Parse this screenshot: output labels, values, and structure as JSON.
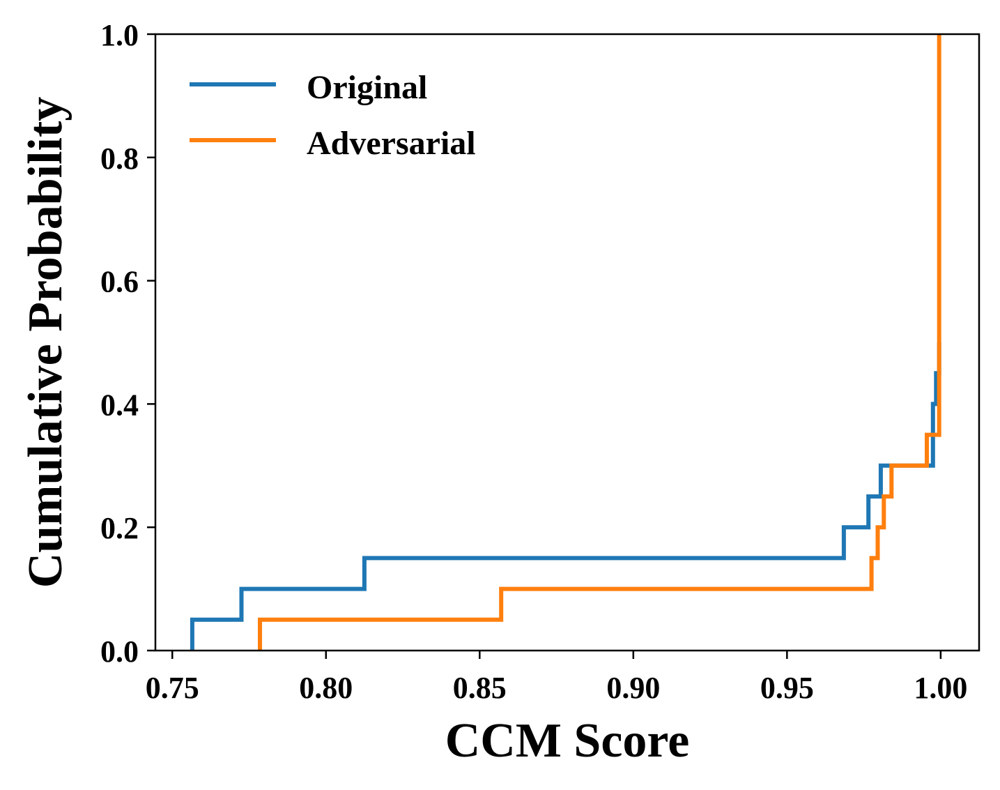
{
  "chart_data": {
    "type": "line",
    "step": "post",
    "xlabel": "CCM Score",
    "ylabel": "Cumulative Probability",
    "xlim": [
      0.7445,
      1.0125
    ],
    "ylim": [
      0.0,
      1.0
    ],
    "xticks": [
      0.75,
      0.8,
      0.85,
      0.9,
      0.95,
      1.0
    ],
    "xtick_labels": [
      "0.75",
      "0.80",
      "0.85",
      "0.90",
      "0.95",
      "1.00"
    ],
    "yticks": [
      0.0,
      0.2,
      0.4,
      0.6,
      0.8,
      1.0
    ],
    "ytick_labels": [
      "0.0",
      "0.2",
      "0.4",
      "0.6",
      "0.8",
      "1.0"
    ],
    "grid": false,
    "legend_position": "upper-left",
    "series": [
      {
        "name": "Original",
        "color": "#1f77b4",
        "points": [
          [
            0.7565,
            0.0
          ],
          [
            0.7565,
            0.05
          ],
          [
            0.7725,
            0.05
          ],
          [
            0.7725,
            0.1
          ],
          [
            0.8125,
            0.1
          ],
          [
            0.8125,
            0.15
          ],
          [
            0.9685,
            0.15
          ],
          [
            0.9685,
            0.2
          ],
          [
            0.9765,
            0.2
          ],
          [
            0.9765,
            0.25
          ],
          [
            0.9805,
            0.25
          ],
          [
            0.9805,
            0.3
          ],
          [
            0.9975,
            0.3
          ],
          [
            0.9975,
            0.4
          ],
          [
            0.9985,
            0.4
          ],
          [
            0.9985,
            0.45
          ],
          [
            0.9995,
            0.45
          ],
          [
            0.9995,
            0.5
          ]
        ]
      },
      {
        "name": "Adversarial",
        "color": "#ff7f0e",
        "points": [
          [
            0.7785,
            0.0
          ],
          [
            0.7785,
            0.05
          ],
          [
            0.857,
            0.05
          ],
          [
            0.857,
            0.1
          ],
          [
            0.9775,
            0.1
          ],
          [
            0.9775,
            0.15
          ],
          [
            0.9795,
            0.15
          ],
          [
            0.9795,
            0.2
          ],
          [
            0.9815,
            0.2
          ],
          [
            0.9815,
            0.25
          ],
          [
            0.984,
            0.25
          ],
          [
            0.984,
            0.3
          ],
          [
            0.9955,
            0.3
          ],
          [
            0.9955,
            0.35
          ],
          [
            0.9995,
            0.35
          ],
          [
            0.9995,
            1.0
          ]
        ]
      }
    ]
  }
}
